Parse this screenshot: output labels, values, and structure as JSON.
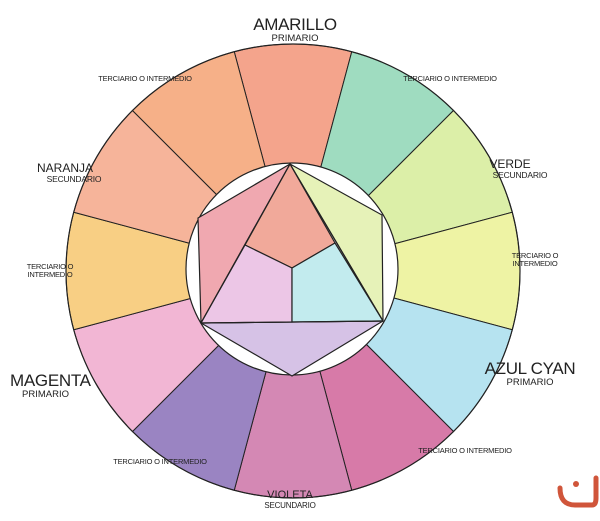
{
  "wheel": {
    "segments": [
      {
        "name": "AMARILLO",
        "type": "PRIMARIO",
        "color": "#f4a48c"
      },
      {
        "name": "",
        "type": "TERCIARIO O INTERMEDIO",
        "color": "#9fdcc0"
      },
      {
        "name": "VERDE",
        "type": "SECUNDARIO",
        "color": "#dcefa8"
      },
      {
        "name": "",
        "type": "TERCIARIO O INTERMEDIO",
        "color": "#eef3a4"
      },
      {
        "name": "AZUL CYAN",
        "type": "PRIMARIO",
        "color": "#b6e3f0"
      },
      {
        "name": "",
        "type": "TERCIARIO O INTERMEDIO",
        "color": "#d77aa8"
      },
      {
        "name": "VIOLETA",
        "type": "SECUNDARIO",
        "color": "#d488b4"
      },
      {
        "name": "",
        "type": "TERCIARIO O INTERMEDIO",
        "color": "#9a84c2"
      },
      {
        "name": "MAGENTA",
        "type": "PRIMARIO",
        "color": "#f2b6d4"
      },
      {
        "name": "",
        "type": "TERCIARIO O INTERMEDIO",
        "color": "#f8cf84"
      },
      {
        "name": "NARANJA",
        "type": "SECUNDARIO",
        "color": "#f6b49a"
      },
      {
        "name": "",
        "type": "TERCIARIO O INTERMEDIO",
        "color": "#f6b088"
      }
    ],
    "inner_colors": {
      "top_triangle": "#f1a99a",
      "left_pentagon": "#ecc6e6",
      "right_pentagon": "#c2ebee",
      "left_wing": "#f0a8b0",
      "right_wing": "#e6f2b8",
      "bottom_wing": "#d6c2e6"
    }
  },
  "labels": {
    "amarillo": {
      "name": "AMARILLO",
      "type": "PRIMARIO"
    },
    "verde": {
      "name": "VERDE",
      "type": "SECUNDARIO"
    },
    "azul": {
      "name": "AZUL CYAN",
      "type": "PRIMARIO"
    },
    "violeta": {
      "name": "VIOLETA",
      "type": "SECUNDARIO"
    },
    "magenta": {
      "name": "MAGENTA",
      "type": "PRIMARIO"
    },
    "naranja": {
      "name": "NARANJA",
      "type": "SECUNDARIO"
    },
    "ter_top_right": "TERCIARIO O INTERMEDIO",
    "ter_right": "TERCIARIO O INTERMEDIO",
    "ter_bottom_right": "TERCIARIO O INTERMEDIO",
    "ter_bottom_left": "TERCIARIO O INTERMEDIO",
    "ter_left": "TERCIARIO O INTERMEDIO",
    "ter_top_left": "TERCIARIO O INTERMEDIO"
  },
  "logo": {
    "color": "#d0553a"
  }
}
